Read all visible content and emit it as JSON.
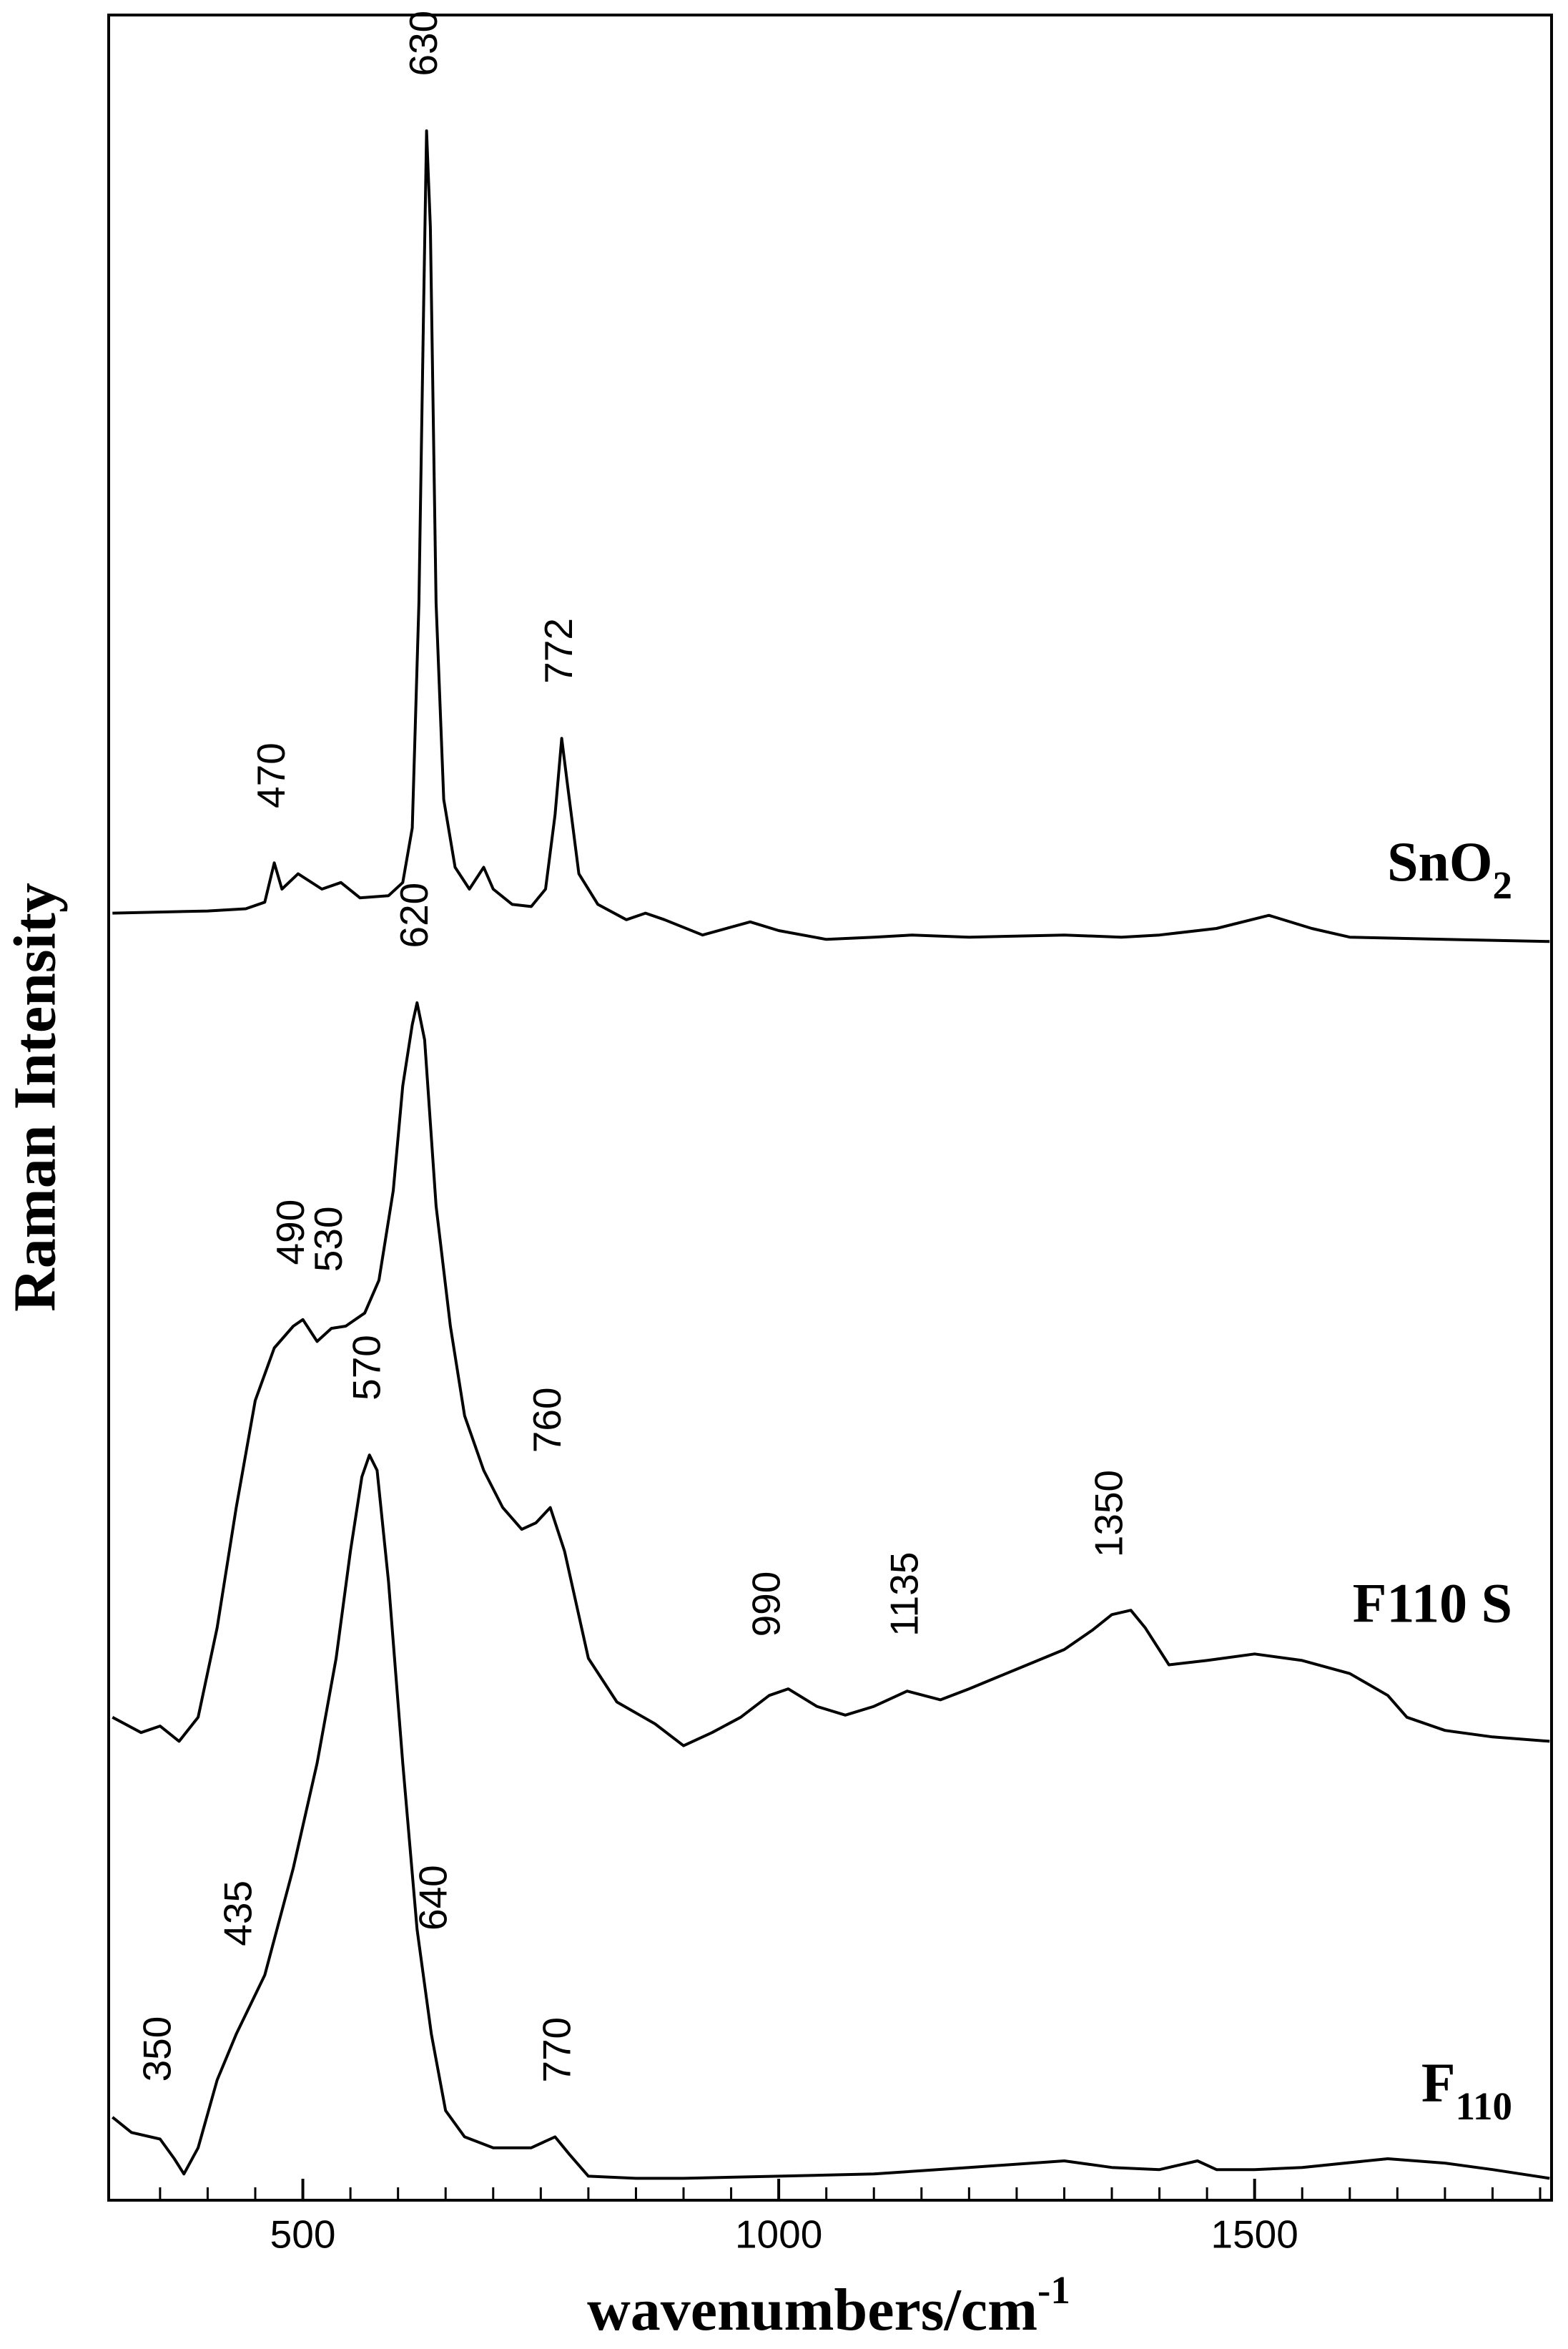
{
  "chart_data": {
    "type": "line",
    "x_label": "wavenumbers/cm-1",
    "y_label": "Raman Intensity",
    "xlim": [
      296,
      1812
    ],
    "ylim": [
      0,
      100
    ],
    "xticks": [
      500,
      1000,
      1500
    ],
    "minor_xticks": [
      350,
      400,
      450,
      550,
      600,
      650,
      700,
      750,
      800,
      850,
      900,
      950,
      1050,
      1100,
      1150,
      1200,
      1250,
      1300,
      1350,
      1400,
      1450,
      1550,
      1600,
      1650,
      1700,
      1750,
      1800
    ],
    "series": [
      {
        "name": "SnO2",
        "color": "#000000",
        "peaks": [
          630,
          772,
          470
        ],
        "x": [
          300,
          400,
          440,
          460,
          470,
          478,
          495,
          520,
          540,
          560,
          590,
          605,
          615,
          622,
          627,
          630,
          634,
          640,
          648,
          660,
          675,
          690,
          700,
          720,
          740,
          755,
          765,
          772,
          778,
          790,
          810,
          840,
          860,
          880,
          920,
          970,
          1000,
          1050,
          1100,
          1140,
          1200,
          1300,
          1360,
          1400,
          1460,
          1515,
          1560,
          1600,
          1700,
          1810
        ],
        "values": [
          58.9,
          59.0,
          59.1,
          59.4,
          61.2,
          60.0,
          60.7,
          60.0,
          60.3,
          59.6,
          59.7,
          60.3,
          62.8,
          73.1,
          86.9,
          94.7,
          90.3,
          73.1,
          64.1,
          61.0,
          60.0,
          61.0,
          60.0,
          59.3,
          59.2,
          60.0,
          63.4,
          66.9,
          64.8,
          60.7,
          59.3,
          58.6,
          58.9,
          58.6,
          57.9,
          58.5,
          58.1,
          57.7,
          57.8,
          57.9,
          57.8,
          57.9,
          57.8,
          57.9,
          58.2,
          58.8,
          58.2,
          57.8,
          57.7,
          57.6
        ]
      },
      {
        "name": "F110 S",
        "color": "#000000",
        "peaks": [
          620,
          490,
          530,
          760,
          990,
          1135,
          1350
        ],
        "x": [
          300,
          330,
          350,
          370,
          390,
          410,
          430,
          450,
          470,
          490,
          500,
          515,
          530,
          545,
          565,
          580,
          595,
          605,
          615,
          620,
          628,
          640,
          655,
          670,
          690,
          710,
          730,
          745,
          760,
          775,
          800,
          830,
          870,
          900,
          930,
          960,
          990,
          1010,
          1040,
          1070,
          1100,
          1135,
          1170,
          1200,
          1250,
          1300,
          1330,
          1350,
          1370,
          1385,
          1410,
          1450,
          1500,
          1550,
          1600,
          1640,
          1660,
          1700,
          1750,
          1810
        ],
        "values": [
          22.1,
          21.4,
          21.7,
          21.0,
          22.1,
          26.2,
          31.7,
          36.6,
          39.0,
          40.0,
          40.3,
          39.3,
          39.9,
          40.0,
          40.6,
          42.1,
          46.2,
          51.0,
          53.8,
          54.8,
          53.1,
          45.5,
          40.0,
          35.9,
          33.4,
          31.7,
          30.7,
          31.0,
          31.7,
          29.7,
          24.8,
          22.8,
          21.8,
          20.8,
          21.4,
          22.1,
          23.1,
          23.4,
          22.6,
          22.2,
          22.6,
          23.3,
          22.9,
          23.4,
          24.3,
          25.2,
          26.1,
          26.8,
          27.0,
          26.2,
          24.5,
          24.7,
          25.0,
          24.7,
          24.1,
          23.1,
          22.1,
          21.5,
          21.2,
          21.0
        ]
      },
      {
        "name": "F110",
        "color": "#000000",
        "peaks": [
          570,
          640,
          435,
          350,
          770
        ],
        "x": [
          300,
          320,
          350,
          365,
          375,
          390,
          410,
          430,
          460,
          490,
          515,
          535,
          550,
          562,
          570,
          578,
          590,
          605,
          620,
          635,
          650,
          670,
          700,
          740,
          765,
          780,
          800,
          850,
          900,
          1000,
          1100,
          1200,
          1300,
          1350,
          1400,
          1440,
          1460,
          1500,
          1550,
          1640,
          1700,
          1750,
          1810
        ],
        "values": [
          3.8,
          3.1,
          2.8,
          1.9,
          1.2,
          2.4,
          5.5,
          7.6,
          10.3,
          15.2,
          20.0,
          24.8,
          29.7,
          33.1,
          34.1,
          33.4,
          28.3,
          20.0,
          12.4,
          7.6,
          4.1,
          2.9,
          2.4,
          2.4,
          2.9,
          2.1,
          1.1,
          1.0,
          1.0,
          1.1,
          1.2,
          1.5,
          1.8,
          1.5,
          1.4,
          1.8,
          1.4,
          1.4,
          1.5,
          1.9,
          1.7,
          1.4,
          1.0
        ]
      }
    ]
  }
}
